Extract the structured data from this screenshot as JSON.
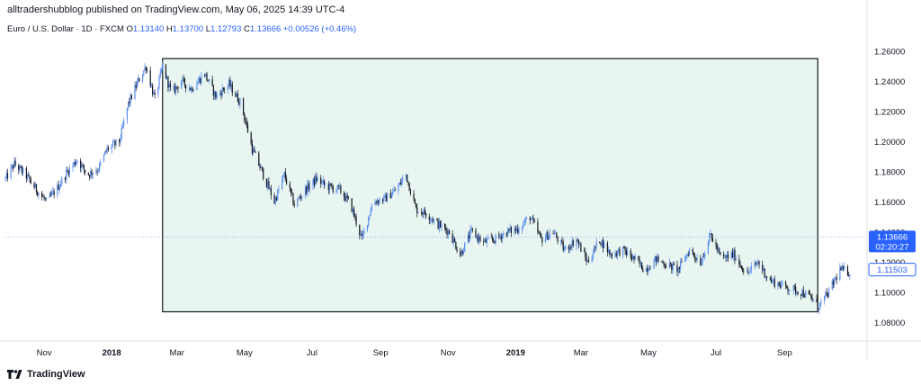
{
  "header": {
    "publisher": "alltradershubblog published on TradingView.com, May 06, 2025 14:39 UTC-4"
  },
  "symbol": {
    "name": "Euro / U.S. Dollar · 1D · FXCM",
    "open_label": "O",
    "open": "1.13140",
    "high_label": "H",
    "high": "1.13700",
    "low_label": "L",
    "low": "1.12793",
    "close_label": "C",
    "close": "1.13666",
    "change": "+0.00526 (+0.46%)"
  },
  "price_tags": {
    "current_price": "1.13666",
    "countdown": "02:20:27",
    "marker_price": "1.11503"
  },
  "footer": {
    "brand": "TradingView"
  },
  "colors": {
    "up": "#5b8def",
    "down": "#131722",
    "rect_fill": "#e8f5f0",
    "rect_stroke": "#131722",
    "current_tag": "#2962ff"
  },
  "chart_data": {
    "type": "candlestick",
    "symbol": "EUR/USD",
    "timeframe": "1D",
    "x_ticks": [
      {
        "label": "Nov",
        "date": "2017-11-01"
      },
      {
        "label": "2018",
        "date": "2018-01-01",
        "bold": true
      },
      {
        "label": "Mar",
        "date": "2018-03-01"
      },
      {
        "label": "May",
        "date": "2018-05-01"
      },
      {
        "label": "Jul",
        "date": "2018-07-01"
      },
      {
        "label": "Sep",
        "date": "2018-09-01"
      },
      {
        "label": "Nov",
        "date": "2018-11-01"
      },
      {
        "label": "2019",
        "date": "2019-01-01",
        "bold": true
      },
      {
        "label": "Mar",
        "date": "2019-03-01"
      },
      {
        "label": "May",
        "date": "2019-05-01"
      },
      {
        "label": "Jul",
        "date": "2019-07-01"
      },
      {
        "label": "Sep",
        "date": "2019-09-01"
      }
    ],
    "y_ticks": [
      "1.26000",
      "1.24000",
      "1.22000",
      "1.20000",
      "1.18000",
      "1.16000",
      "1.14000",
      "1.12000",
      "1.10000",
      "1.08000"
    ],
    "ylim": [
      1.07,
      1.27
    ],
    "xlim": [
      "2017-09-27",
      "2019-11-08"
    ],
    "close_path": [
      [
        "2017-09-27",
        1.175
      ],
      [
        "2017-10-05",
        1.185
      ],
      [
        "2017-10-15",
        1.178
      ],
      [
        "2017-10-25",
        1.168
      ],
      [
        "2017-11-03",
        1.16
      ],
      [
        "2017-11-12",
        1.168
      ],
      [
        "2017-11-22",
        1.18
      ],
      [
        "2017-12-01",
        1.188
      ],
      [
        "2017-12-10",
        1.178
      ],
      [
        "2017-12-20",
        1.182
      ],
      [
        "2017-12-28",
        1.195
      ],
      [
        "2018-01-08",
        1.2
      ],
      [
        "2018-01-16",
        1.225
      ],
      [
        "2018-01-25",
        1.24
      ],
      [
        "2018-02-01",
        1.25
      ],
      [
        "2018-02-09",
        1.228
      ],
      [
        "2018-02-16",
        1.25
      ],
      [
        "2018-02-24",
        1.232
      ],
      [
        "2018-03-05",
        1.24
      ],
      [
        "2018-03-14",
        1.235
      ],
      [
        "2018-03-26",
        1.245
      ],
      [
        "2018-04-05",
        1.23
      ],
      [
        "2018-04-17",
        1.238
      ],
      [
        "2018-04-28",
        1.225
      ],
      [
        "2018-05-08",
        1.195
      ],
      [
        "2018-05-18",
        1.178
      ],
      [
        "2018-05-28",
        1.16
      ],
      [
        "2018-06-06",
        1.178
      ],
      [
        "2018-06-15",
        1.158
      ],
      [
        "2018-06-25",
        1.168
      ],
      [
        "2018-07-05",
        1.175
      ],
      [
        "2018-07-15",
        1.17
      ],
      [
        "2018-07-26",
        1.168
      ],
      [
        "2018-08-05",
        1.158
      ],
      [
        "2018-08-15",
        1.135
      ],
      [
        "2018-08-25",
        1.16
      ],
      [
        "2018-09-05",
        1.162
      ],
      [
        "2018-09-15",
        1.168
      ],
      [
        "2018-09-24",
        1.178
      ],
      [
        "2018-10-03",
        1.155
      ],
      [
        "2018-10-13",
        1.152
      ],
      [
        "2018-10-23",
        1.145
      ],
      [
        "2018-11-02",
        1.14
      ],
      [
        "2018-11-12",
        1.125
      ],
      [
        "2018-11-22",
        1.14
      ],
      [
        "2018-12-03",
        1.133
      ],
      [
        "2018-12-13",
        1.135
      ],
      [
        "2018-12-24",
        1.14
      ],
      [
        "2019-01-03",
        1.142
      ],
      [
        "2019-01-14",
        1.15
      ],
      [
        "2019-01-24",
        1.135
      ],
      [
        "2019-02-04",
        1.14
      ],
      [
        "2019-02-14",
        1.128
      ],
      [
        "2019-02-25",
        1.135
      ],
      [
        "2019-03-07",
        1.12
      ],
      [
        "2019-03-18",
        1.135
      ],
      [
        "2019-03-28",
        1.125
      ],
      [
        "2019-04-08",
        1.128
      ],
      [
        "2019-04-18",
        1.122
      ],
      [
        "2019-04-28",
        1.115
      ],
      [
        "2019-05-08",
        1.122
      ],
      [
        "2019-05-18",
        1.118
      ],
      [
        "2019-05-28",
        1.115
      ],
      [
        "2019-06-07",
        1.128
      ],
      [
        "2019-06-17",
        1.12
      ],
      [
        "2019-06-26",
        1.138
      ],
      [
        "2019-07-06",
        1.122
      ],
      [
        "2019-07-17",
        1.125
      ],
      [
        "2019-07-29",
        1.112
      ],
      [
        "2019-08-08",
        1.12
      ],
      [
        "2019-08-18",
        1.108
      ],
      [
        "2019-08-28",
        1.105
      ],
      [
        "2019-09-07",
        1.102
      ],
      [
        "2019-09-17",
        1.1
      ],
      [
        "2019-09-27",
        1.095
      ],
      [
        "2019-10-01",
        1.09
      ],
      [
        "2019-10-11",
        1.1
      ],
      [
        "2019-10-21",
        1.115
      ],
      [
        "2019-10-31",
        1.113
      ]
    ],
    "rectangle": {
      "from": "2018-02-16",
      "to": "2019-10-01",
      "top": 1.255,
      "bottom": 1.087
    },
    "current_price_line": 1.13666
  }
}
